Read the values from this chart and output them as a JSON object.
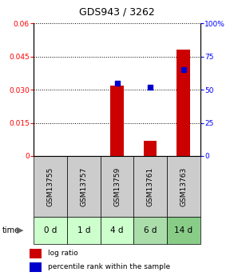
{
  "title": "GDS943 / 3262",
  "samples": [
    "GSM13755",
    "GSM13757",
    "GSM13759",
    "GSM13761",
    "GSM13763"
  ],
  "time_labels": [
    "0 d",
    "1 d",
    "4 d",
    "6 d",
    "14 d"
  ],
  "log_ratio": [
    0.0,
    0.0,
    0.032,
    0.007,
    0.048
  ],
  "percentile_rank": [
    null,
    null,
    55.0,
    52.0,
    65.0
  ],
  "ylim_left": [
    0,
    0.06
  ],
  "ylim_right": [
    0,
    100
  ],
  "yticks_left": [
    0,
    0.015,
    0.03,
    0.045,
    0.06
  ],
  "ytick_labels_left": [
    "0",
    "0.015",
    "0.030",
    "0.045",
    "0.06"
  ],
  "yticks_right": [
    0,
    25,
    50,
    75,
    100
  ],
  "ytick_labels_right": [
    "0",
    "25",
    "50",
    "75",
    "100%"
  ],
  "bar_color": "#cc0000",
  "dot_color": "#0000cc",
  "title_fontsize": 9,
  "tick_fontsize": 6.5,
  "sample_label_fontsize": 6.5,
  "time_label_fontsize": 7.5,
  "bar_width": 0.4,
  "sample_bg_color": "#cccccc",
  "time_colors": [
    "#ccffcc",
    "#ccffcc",
    "#ccffcc",
    "#aaddaa",
    "#88cc88"
  ],
  "legend_fontsize": 6.5
}
